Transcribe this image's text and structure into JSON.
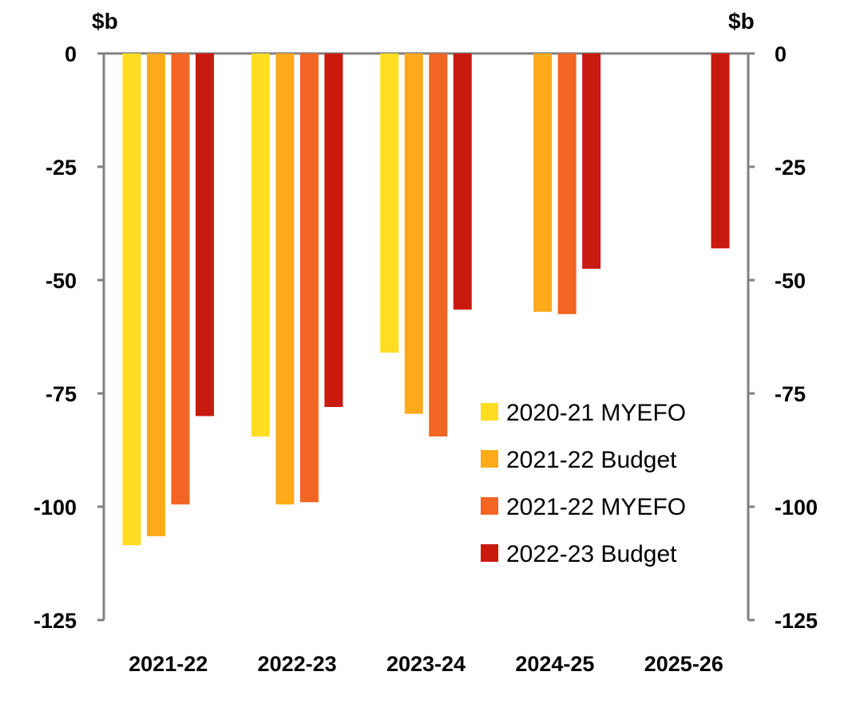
{
  "chart_data": {
    "type": "bar",
    "title": "",
    "xlabel": "",
    "ylabel": "",
    "unit_left": "$b",
    "unit_right": "$b",
    "categories": [
      "2021-22",
      "2022-23",
      "2023-24",
      "2024-25",
      "2025-26"
    ],
    "ylim": [
      -125,
      0
    ],
    "yticks": [
      0,
      -25,
      -50,
      -75,
      -100,
      -125
    ],
    "ytick_labels": [
      "0",
      "-25",
      "-50",
      "-75",
      "-100",
      "-125"
    ],
    "legend_position": "bottom-right",
    "series": [
      {
        "name": "2020-21 MYEFO",
        "color": "#FFDD22",
        "values": [
          -108.5,
          -84.5,
          -66,
          null,
          null
        ]
      },
      {
        "name": "2021-22 Budget",
        "color": "#FFAA1A",
        "values": [
          -106.5,
          -99.5,
          -79.5,
          -57,
          null
        ]
      },
      {
        "name": "2021-22 MYEFO",
        "color": "#F26522",
        "values": [
          -99.5,
          -99,
          -84.5,
          -57.5,
          null
        ]
      },
      {
        "name": "2022-23 Budget",
        "color": "#C91A10",
        "values": [
          -80,
          -78,
          -56.5,
          -47.5,
          -43
        ]
      }
    ],
    "axis_color": "#808080"
  }
}
